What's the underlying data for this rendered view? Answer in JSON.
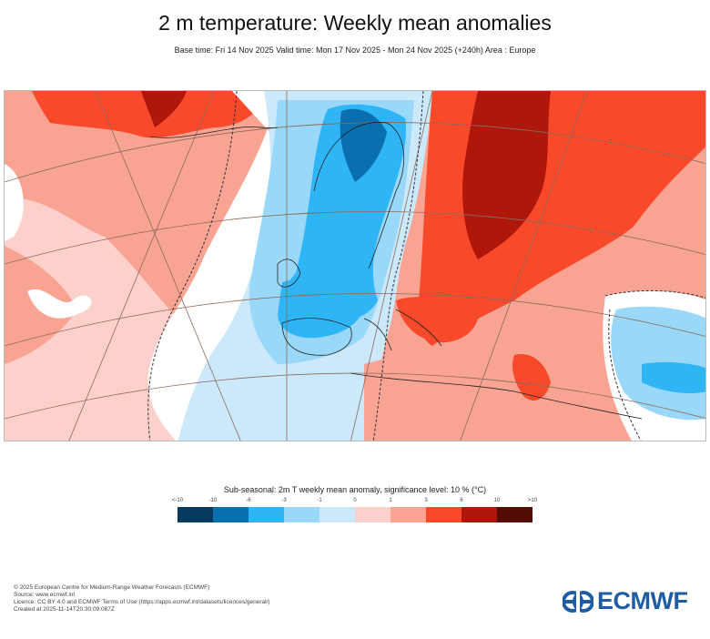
{
  "header": {
    "title": "2 m temperature: Weekly mean anomalies",
    "subtitle": "Base time: Fri 14 Nov 2025 Valid time: Mon 17 Nov 2025 - Mon 24 Nov 2025 (+240h) Area : Europe"
  },
  "map": {
    "area": "Europe",
    "variable": "2m temperature weekly mean anomaly",
    "significance_contour": "dashed",
    "regions": [
      {
        "name": "greenland",
        "anomaly_class": "3 to 10"
      },
      {
        "name": "north-atlantic",
        "anomaly_class": "1 to 3"
      },
      {
        "name": "scandinavia",
        "anomaly_class": "-6 to -1"
      },
      {
        "name": "western-europe",
        "anomaly_class": "-3 to 0"
      },
      {
        "name": "eastern-europe-russia",
        "anomaly_class": "3 to 10"
      },
      {
        "name": "central-asia",
        "anomaly_class": "0 to 3"
      },
      {
        "name": "caspian-region",
        "anomaly_class": "-3 to 0"
      },
      {
        "name": "north-africa-middle-east",
        "anomaly_class": "0 to 6"
      }
    ]
  },
  "colorbar": {
    "title": "Sub-seasonal: 2m T weekly mean anomaly, significance level: 10 % (°C)",
    "tick_labels": [
      "<-10",
      "-10",
      "-6",
      "-3",
      "-1",
      "0",
      "1",
      "3",
      "6",
      "10",
      ">10"
    ],
    "colors": [
      "#063a5e",
      "#0a6fae",
      "#2fb5f5",
      "#99d8f8",
      "#cbe9fb",
      "#fdd1cb",
      "#f9a393",
      "#f8492b",
      "#b0170b",
      "#560c06"
    ],
    "unit": "°C"
  },
  "footer": {
    "lines": [
      "© 2025 European Centre for Medium-Range Weather Forecasts (ECMWF)",
      "Source: www.ecmwf.int",
      "Licence: CC BY 4.0 and ECMWF Terms of Use (https://apps.ecmwf.int/datasets/licences/general/)",
      "Created at 2025-11-14T20:30:09.087Z"
    ]
  },
  "logo": {
    "text": "ECMWF",
    "color": "#1f5ca4"
  }
}
